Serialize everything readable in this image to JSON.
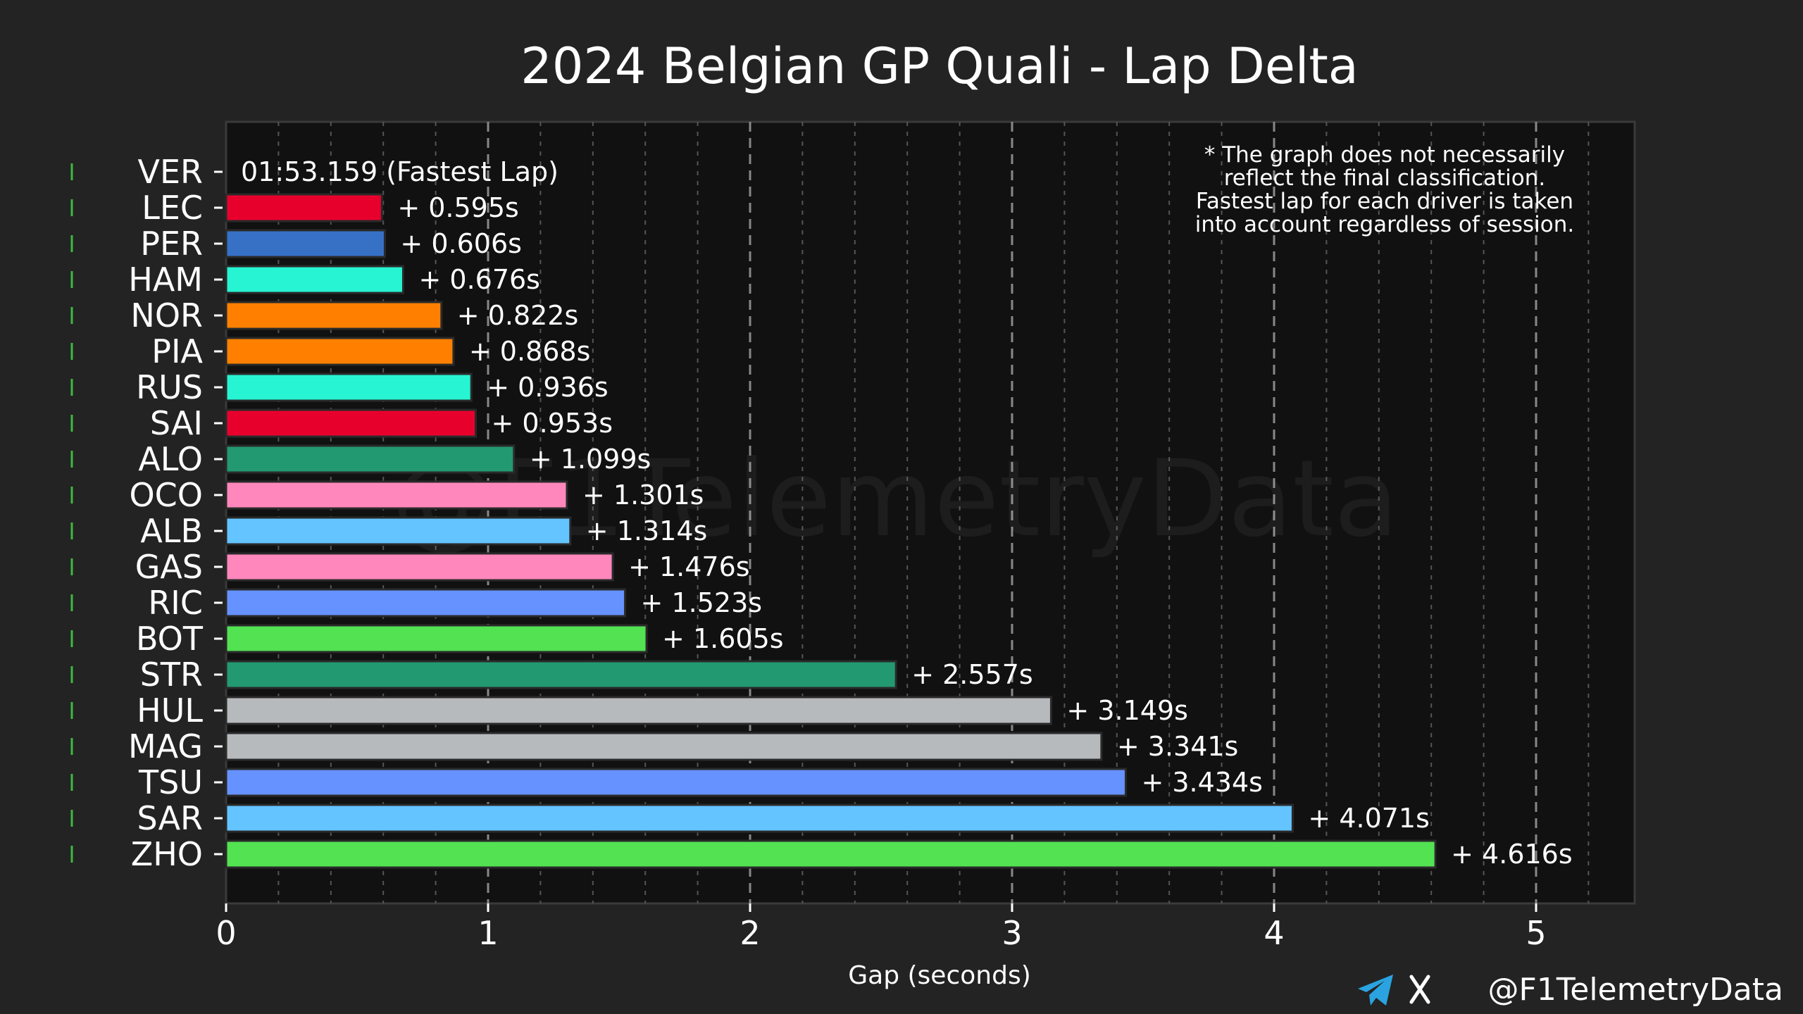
{
  "chart_data": {
    "type": "bar",
    "orientation": "horizontal",
    "title": "2024 Belgian GP Quali - Lap Delta",
    "xlabel": "Gap (seconds)",
    "ylabel": "",
    "xlim": [
      0,
      5.33
    ],
    "xticks": [
      "0",
      "1",
      "2",
      "3",
      "4",
      "5"
    ],
    "grid": true,
    "fastest": {
      "driver": "VER",
      "label": "01:53.159 (Fastest Lap)"
    },
    "bars": [
      {
        "driver": "LEC",
        "value": 0.595,
        "label": "+ 0.595s",
        "color": "#e8002d"
      },
      {
        "driver": "PER",
        "value": 0.606,
        "label": "+ 0.606s",
        "color": "#3671c6"
      },
      {
        "driver": "HAM",
        "value": 0.676,
        "label": "+ 0.676s",
        "color": "#27f4d2"
      },
      {
        "driver": "NOR",
        "value": 0.822,
        "label": "+ 0.822s",
        "color": "#ff8000"
      },
      {
        "driver": "PIA",
        "value": 0.868,
        "label": "+ 0.868s",
        "color": "#ff8000"
      },
      {
        "driver": "RUS",
        "value": 0.936,
        "label": "+ 0.936s",
        "color": "#27f4d2"
      },
      {
        "driver": "SAI",
        "value": 0.953,
        "label": "+ 0.953s",
        "color": "#e8002d"
      },
      {
        "driver": "ALO",
        "value": 1.099,
        "label": "+ 1.099s",
        "color": "#229971"
      },
      {
        "driver": "OCO",
        "value": 1.301,
        "label": "+ 1.301s",
        "color": "#ff87bc"
      },
      {
        "driver": "ALB",
        "value": 1.314,
        "label": "+ 1.314s",
        "color": "#64c4ff"
      },
      {
        "driver": "GAS",
        "value": 1.476,
        "label": "+ 1.476s",
        "color": "#ff87bc"
      },
      {
        "driver": "RIC",
        "value": 1.523,
        "label": "+ 1.523s",
        "color": "#6692ff"
      },
      {
        "driver": "BOT",
        "value": 1.605,
        "label": "+ 1.605s",
        "color": "#52e252"
      },
      {
        "driver": "STR",
        "value": 2.557,
        "label": "+ 2.557s",
        "color": "#229971"
      },
      {
        "driver": "HUL",
        "value": 3.149,
        "label": "+ 3.149s",
        "color": "#b6babd"
      },
      {
        "driver": "MAG",
        "value": 3.341,
        "label": "+ 3.341s",
        "color": "#b6babd"
      },
      {
        "driver": "TSU",
        "value": 3.434,
        "label": "+ 3.434s",
        "color": "#6692ff"
      },
      {
        "driver": "SAR",
        "value": 4.071,
        "label": "+ 4.071s",
        "color": "#64c4ff"
      },
      {
        "driver": "ZHO",
        "value": 4.616,
        "label": "+ 4.616s",
        "color": "#52e252"
      }
    ],
    "note_lines": [
      "* The graph does not necessarily",
      "reflect the final classification.",
      "Fastest lap for each driver is taken",
      "into account regardless of session."
    ],
    "watermark": "@F1TelemetryData"
  },
  "footer": {
    "handle": "@F1TelemetryData",
    "telegram_icon": "telegram-icon",
    "x_icon": "x-logo-icon"
  },
  "colors": {
    "background": "#232323",
    "plot_background": "#111111",
    "grid_major": "#888888",
    "grid_minor": "#555555",
    "legend_marker": "#3fb93f",
    "telegram": "#2aa3e0"
  }
}
